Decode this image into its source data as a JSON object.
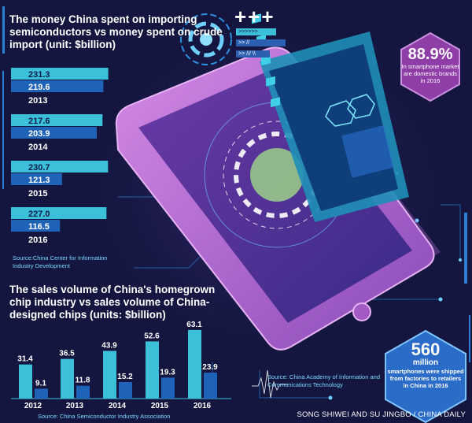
{
  "chart_data": [
    {
      "type": "bar",
      "orientation": "horizontal",
      "title": "The money China spent on importing semiconductors vs money spent on crude import (unit: $billion)",
      "categories": [
        "2013",
        "2014",
        "2015",
        "2016"
      ],
      "series": [
        {
          "values": [
            231.3,
            217.6,
            230.7,
            227.0
          ]
        },
        {
          "values": [
            219.6,
            203.9,
            121.3,
            116.5
          ]
        }
      ],
      "value_labels": [
        [
          "231.3",
          "217.6",
          "230.7",
          "227.0"
        ],
        [
          "219.6",
          "203.9",
          "121.3",
          "116.5"
        ]
      ],
      "source": "Source:China Center for Information Industry Development"
    },
    {
      "type": "bar",
      "title": "The sales volume of China's homegrown chip industry vs sales volume of China-designed chips (units: $billion)",
      "categories": [
        "2012",
        "2013",
        "2014",
        "2015",
        "2016"
      ],
      "series": [
        {
          "values": [
            31.4,
            36.5,
            43.9,
            52.6,
            63.1
          ]
        },
        {
          "values": [
            9.1,
            11.8,
            15.2,
            19.3,
            23.9
          ]
        }
      ],
      "value_labels": [
        [
          "31.4",
          "36.5",
          "43.9",
          "52.6",
          "63.1"
        ],
        [
          "9.1",
          "11.8",
          "15.2",
          "19.3",
          "23.9"
        ]
      ],
      "source": "Source: China Semiconductor Industry Association",
      "source2": "Source: China Academy of Information and Communications Technology"
    }
  ],
  "badges": {
    "smartphone_share": {
      "value": "88.9%",
      "text": "In smartphone market are domestic brands in 2016"
    },
    "shipments": {
      "value": "560",
      "unit": "million",
      "text": "smartphones were shipped from factories to retailers in China in 2016"
    }
  },
  "credit": "SONG SHIWEI AND SU JINGBO / CHINA DAILY",
  "decor": {
    "plus_signs": "+++",
    "arrows": ">>>>>>",
    "code": ">> //",
    "slashes": ">> /// \\\\"
  },
  "colors": {
    "background": "#14163f",
    "bar_light": "#3cc0da",
    "bar_dark": "#1f63b8",
    "phone": "#c07ad8",
    "badge_purple": "#8f3ea8",
    "badge_blue": "#2a6cc8"
  }
}
